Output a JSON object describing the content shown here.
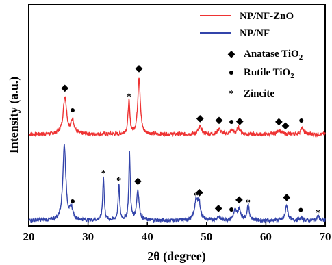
{
  "chart_data": {
    "type": "line",
    "xlabel": "2θ (degree)",
    "ylabel": "Intensity (a.u.)",
    "xlim": [
      20,
      70
    ],
    "xticks": [
      "20",
      "30",
      "40",
      "50",
      "60",
      "70"
    ],
    "grid": false,
    "legend_position": "top-right",
    "series": [
      {
        "name": "NP/NF-ZnO",
        "color": "#ee3333",
        "peaks": [
          {
            "x": 26.1,
            "h": 0.62,
            "w": 0.35
          },
          {
            "x": 27.4,
            "h": 0.22,
            "w": 0.3
          },
          {
            "x": 36.9,
            "h": 0.55,
            "w": 0.18
          },
          {
            "x": 38.6,
            "h": 0.95,
            "w": 0.25
          },
          {
            "x": 48.9,
            "h": 0.12,
            "w": 0.35
          },
          {
            "x": 52.1,
            "h": 0.09,
            "w": 0.3
          },
          {
            "x": 54.2,
            "h": 0.06,
            "w": 0.3
          },
          {
            "x": 55.4,
            "h": 0.1,
            "w": 0.35
          },
          {
            "x": 62.2,
            "h": 0.07,
            "w": 0.35
          },
          {
            "x": 66.1,
            "h": 0.1,
            "w": 0.3
          }
        ]
      },
      {
        "name": "NP/NF",
        "color": "#3344aa",
        "peaks": [
          {
            "x": 26.0,
            "h": 1.25,
            "w": 0.3
          },
          {
            "x": 27.2,
            "h": 0.18,
            "w": 0.3
          },
          {
            "x": 32.6,
            "h": 0.73,
            "w": 0.15
          },
          {
            "x": 35.2,
            "h": 0.6,
            "w": 0.15
          },
          {
            "x": 37.0,
            "h": 1.1,
            "w": 0.15
          },
          {
            "x": 38.4,
            "h": 0.5,
            "w": 0.25
          },
          {
            "x": 48.2,
            "h": 0.28,
            "w": 0.3
          },
          {
            "x": 48.7,
            "h": 0.3,
            "w": 0.3
          },
          {
            "x": 52.0,
            "h": 0.06,
            "w": 0.3
          },
          {
            "x": 54.8,
            "h": 0.15,
            "w": 0.3
          },
          {
            "x": 55.5,
            "h": 0.18,
            "w": 0.3
          },
          {
            "x": 57.0,
            "h": 0.24,
            "w": 0.25
          },
          {
            "x": 63.5,
            "h": 0.25,
            "w": 0.25
          },
          {
            "x": 66.0,
            "h": 0.04,
            "w": 0.3
          },
          {
            "x": 68.8,
            "h": 0.08,
            "w": 0.2
          }
        ]
      }
    ],
    "phase_markers": [
      {
        "x": 26.1,
        "symbol": "◆",
        "series": "NP/NF-ZnO"
      },
      {
        "x": 27.4,
        "symbol": "●",
        "series": "NP/NF-ZnO"
      },
      {
        "x": 36.9,
        "symbol": "*",
        "series": "NP/NF-ZnO"
      },
      {
        "x": 38.6,
        "symbol": "◆",
        "series": "NP/NF-ZnO"
      },
      {
        "x": 48.9,
        "symbol": "◆",
        "series": "NP/NF-ZnO"
      },
      {
        "x": 52.1,
        "symbol": "◆",
        "series": "NP/NF-ZnO"
      },
      {
        "x": 54.2,
        "symbol": "●",
        "series": "NP/NF-ZnO"
      },
      {
        "x": 55.6,
        "symbol": "◆",
        "series": "NP/NF-ZnO"
      },
      {
        "x": 62.2,
        "symbol": "◆",
        "series": "NP/NF-ZnO"
      },
      {
        "x": 63.3,
        "symbol": "◆",
        "series": "NP/NF-ZnO"
      },
      {
        "x": 66.0,
        "symbol": "●",
        "series": "NP/NF-ZnO"
      },
      {
        "x": 27.4,
        "symbol": "●",
        "series": "NP/NF"
      },
      {
        "x": 32.6,
        "symbol": "*",
        "series": "NP/NF"
      },
      {
        "x": 35.2,
        "symbol": "*",
        "series": "NP/NF"
      },
      {
        "x": 38.4,
        "symbol": "◆",
        "series": "NP/NF"
      },
      {
        "x": 48.2,
        "symbol": "*",
        "series": "NP/NF"
      },
      {
        "x": 48.8,
        "symbol": "◆",
        "series": "NP/NF"
      },
      {
        "x": 52.0,
        "symbol": "◆",
        "series": "NP/NF"
      },
      {
        "x": 54.2,
        "symbol": "●",
        "series": "NP/NF"
      },
      {
        "x": 55.5,
        "symbol": "◆",
        "series": "NP/NF"
      },
      {
        "x": 57.0,
        "symbol": "*",
        "series": "NP/NF"
      },
      {
        "x": 63.5,
        "symbol": "◆",
        "series": "NP/NF"
      },
      {
        "x": 65.9,
        "symbol": "●",
        "series": "NP/NF"
      },
      {
        "x": 68.8,
        "symbol": "*",
        "series": "NP/NF"
      }
    ],
    "legend": {
      "series_entries": [
        "NP/NF-ZnO",
        "NP/NF"
      ],
      "phase_entries": [
        {
          "symbol": "◆",
          "label": "Anatase TiO",
          "subscript": "2"
        },
        {
          "symbol": "●",
          "label": "Rutile TiO",
          "subscript": "2"
        },
        {
          "symbol": "*",
          "label": "Zincite",
          "subscript": ""
        }
      ]
    }
  }
}
